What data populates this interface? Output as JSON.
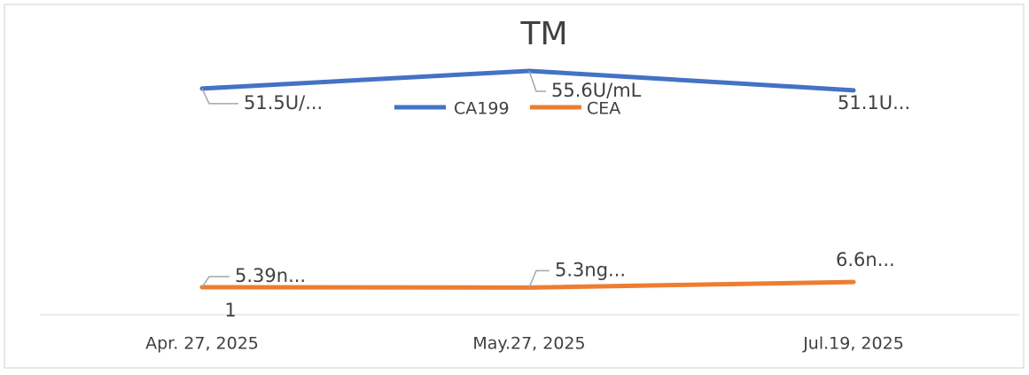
{
  "chart_data": {
    "type": "line",
    "title": "TM",
    "categories": [
      "Apr. 27, 2025",
      "May.27, 2025",
      "Jul.19, 2025"
    ],
    "series": [
      {
        "name": "CA199",
        "color": "#4472c4",
        "values": [
          51.5,
          55.6,
          51.1
        ],
        "value_labels": [
          "51.5U/...",
          "55.6U/mL",
          "51.1U..."
        ]
      },
      {
        "name": "CEA",
        "color": "#ed7d31",
        "values": [
          5.39,
          5.3,
          6.6
        ],
        "value_labels": [
          "5.39n...",
          "5.3ng...",
          "6.6n..."
        ]
      }
    ],
    "annotation": "1",
    "ylim": [
      -1,
      70
    ]
  }
}
